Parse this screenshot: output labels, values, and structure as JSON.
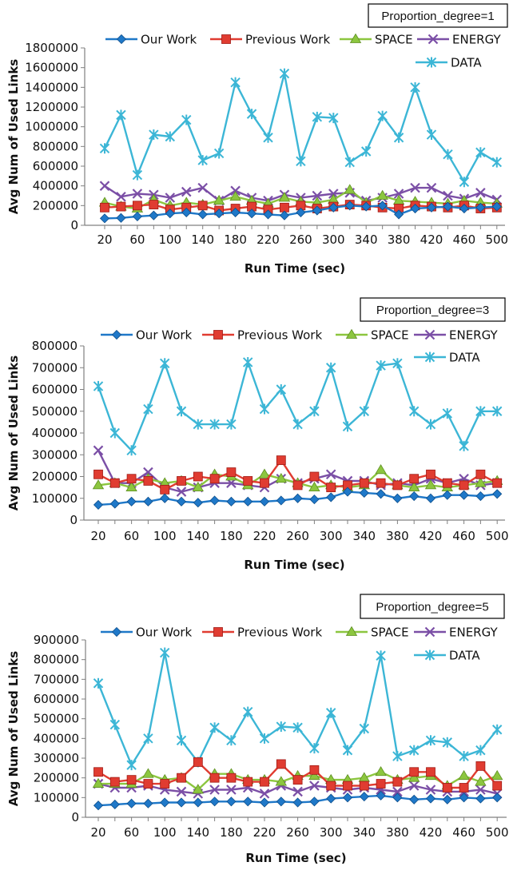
{
  "chart_data": [
    {
      "type": "line",
      "annotation": "Proportion_degree=1",
      "xlabel": "Run Time (sec)",
      "ylabel": "Avg Num of Used Links",
      "ylim": [
        0,
        1800000
      ],
      "yticks": [
        0,
        200000,
        400000,
        600000,
        800000,
        1000000,
        1200000,
        1400000,
        1600000,
        1800000
      ],
      "ytick_labels": [
        "0",
        "200000",
        "400000",
        "600000",
        "800000",
        "1000000",
        "1200000",
        "1400000",
        "1600000",
        "1800000"
      ],
      "xtick_labels": [
        "20",
        "60",
        "100",
        "140",
        "180",
        "220",
        "260",
        "300",
        "340",
        "380",
        "420",
        "460",
        "500"
      ],
      "x": [
        20,
        40,
        60,
        80,
        100,
        120,
        140,
        160,
        180,
        200,
        220,
        240,
        260,
        280,
        300,
        320,
        340,
        360,
        380,
        400,
        420,
        440,
        460,
        480,
        500
      ],
      "legend_position": "top",
      "series": [
        {
          "name": "Our Work",
          "color": "#1f78c8",
          "marker": "diamond",
          "values": [
            70000,
            75000,
            90000,
            100000,
            120000,
            130000,
            110000,
            120000,
            130000,
            120000,
            110000,
            100000,
            130000,
            150000,
            180000,
            200000,
            190000,
            200000,
            110000,
            170000,
            180000,
            190000,
            170000,
            180000,
            190000
          ]
        },
        {
          "name": "Previous Work",
          "color": "#e03c31",
          "marker": "square",
          "values": [
            180000,
            190000,
            200000,
            210000,
            160000,
            180000,
            200000,
            150000,
            170000,
            190000,
            160000,
            180000,
            200000,
            170000,
            190000,
            210000,
            200000,
            180000,
            170000,
            200000,
            190000,
            180000,
            200000,
            170000,
            180000
          ]
        },
        {
          "name": "SPACE",
          "color": "#8cc63f",
          "marker": "triangle",
          "values": [
            230000,
            190000,
            170000,
            260000,
            200000,
            230000,
            210000,
            250000,
            290000,
            250000,
            220000,
            280000,
            240000,
            230000,
            260000,
            360000,
            230000,
            300000,
            250000,
            240000,
            230000,
            220000,
            250000,
            230000,
            220000
          ]
        },
        {
          "name": "ENERGY",
          "color": "#7b4fa6",
          "marker": "x",
          "values": [
            400000,
            290000,
            320000,
            310000,
            280000,
            340000,
            380000,
            250000,
            350000,
            280000,
            250000,
            310000,
            280000,
            300000,
            320000,
            330000,
            250000,
            280000,
            320000,
            380000,
            380000,
            300000,
            270000,
            330000,
            260000
          ]
        },
        {
          "name": "DATA",
          "color": "#3cb6d6",
          "marker": "star",
          "values": [
            780000,
            1120000,
            510000,
            920000,
            900000,
            1070000,
            660000,
            730000,
            1450000,
            1130000,
            890000,
            1540000,
            650000,
            1100000,
            1090000,
            640000,
            750000,
            1110000,
            890000,
            1400000,
            920000,
            720000,
            440000,
            740000,
            640000
          ]
        }
      ]
    },
    {
      "type": "line",
      "annotation": "Proportion_degree=3",
      "xlabel": "Run Time (sec)",
      "ylabel": "Avg Num of Used Links",
      "ylim": [
        0,
        800000
      ],
      "yticks": [
        0,
        100000,
        200000,
        300000,
        400000,
        500000,
        600000,
        700000,
        800000
      ],
      "ytick_labels": [
        "0",
        "100000",
        "200000",
        "300000",
        "400000",
        "500000",
        "600000",
        "700000",
        "800000"
      ],
      "xtick_labels": [
        "20",
        "60",
        "100",
        "140",
        "180",
        "220",
        "260",
        "300",
        "340",
        "380",
        "420",
        "460",
        "500"
      ],
      "x": [
        20,
        40,
        60,
        80,
        100,
        120,
        140,
        160,
        180,
        200,
        220,
        240,
        260,
        280,
        300,
        320,
        340,
        360,
        380,
        400,
        420,
        440,
        460,
        480,
        500
      ],
      "legend_position": "top",
      "series": [
        {
          "name": "Our Work",
          "color": "#1f78c8",
          "marker": "diamond",
          "values": [
            70000,
            75000,
            85000,
            85000,
            100000,
            85000,
            80000,
            90000,
            85000,
            85000,
            85000,
            90000,
            100000,
            95000,
            105000,
            130000,
            125000,
            120000,
            100000,
            110000,
            100000,
            115000,
            115000,
            110000,
            120000
          ]
        },
        {
          "name": "Previous Work",
          "color": "#e03c31",
          "marker": "square",
          "values": [
            210000,
            170000,
            190000,
            180000,
            140000,
            180000,
            200000,
            190000,
            220000,
            180000,
            170000,
            275000,
            160000,
            200000,
            150000,
            160000,
            170000,
            170000,
            160000,
            190000,
            210000,
            170000,
            160000,
            210000,
            170000
          ]
        },
        {
          "name": "SPACE",
          "color": "#8cc63f",
          "marker": "triangle",
          "values": [
            160000,
            170000,
            150000,
            190000,
            170000,
            180000,
            150000,
            210000,
            200000,
            160000,
            210000,
            190000,
            170000,
            150000,
            160000,
            150000,
            160000,
            230000,
            160000,
            150000,
            160000,
            150000,
            160000,
            170000,
            180000
          ]
        },
        {
          "name": "ENERGY",
          "color": "#7b4fa6",
          "marker": "x",
          "values": [
            320000,
            170000,
            170000,
            220000,
            150000,
            130000,
            150000,
            170000,
            170000,
            160000,
            150000,
            190000,
            170000,
            190000,
            210000,
            180000,
            180000,
            160000,
            170000,
            160000,
            190000,
            170000,
            190000,
            160000,
            170000
          ]
        },
        {
          "name": "DATA",
          "color": "#3cb6d6",
          "marker": "star",
          "values": [
            615000,
            400000,
            320000,
            510000,
            720000,
            500000,
            440000,
            440000,
            440000,
            725000,
            510000,
            600000,
            440000,
            500000,
            700000,
            430000,
            500000,
            710000,
            720000,
            500000,
            440000,
            490000,
            340000,
            500000,
            500000
          ]
        }
      ]
    },
    {
      "type": "line",
      "annotation": "Proportion_degree=5",
      "xlabel": "Run Time (sec)",
      "ylabel": "Avg Num of Used Links",
      "ylim": [
        0,
        900000
      ],
      "yticks": [
        0,
        100000,
        200000,
        300000,
        400000,
        500000,
        600000,
        700000,
        800000,
        900000
      ],
      "ytick_labels": [
        "0",
        "100000",
        "200000",
        "300000",
        "400000",
        "500000",
        "600000",
        "700000",
        "800000",
        "900000"
      ],
      "xtick_labels": [
        "20",
        "60",
        "100",
        "140",
        "180",
        "220",
        "260",
        "300",
        "340",
        "380",
        "420",
        "460",
        "500"
      ],
      "x": [
        20,
        40,
        60,
        80,
        100,
        120,
        140,
        160,
        180,
        200,
        220,
        240,
        260,
        280,
        300,
        320,
        340,
        360,
        380,
        400,
        420,
        440,
        460,
        480,
        500
      ],
      "legend_position": "top",
      "series": [
        {
          "name": "Our Work",
          "color": "#1f78c8",
          "marker": "diamond",
          "values": [
            60000,
            65000,
            70000,
            70000,
            75000,
            75000,
            75000,
            80000,
            80000,
            80000,
            75000,
            80000,
            75000,
            80000,
            95000,
            100000,
            105000,
            110000,
            100000,
            90000,
            95000,
            90000,
            100000,
            95000,
            100000
          ]
        },
        {
          "name": "Previous Work",
          "color": "#e03c31",
          "marker": "square",
          "values": [
            230000,
            180000,
            190000,
            170000,
            170000,
            200000,
            280000,
            200000,
            200000,
            180000,
            180000,
            270000,
            190000,
            240000,
            160000,
            160000,
            160000,
            170000,
            180000,
            230000,
            230000,
            150000,
            150000,
            260000,
            160000
          ]
        },
        {
          "name": "SPACE",
          "color": "#8cc63f",
          "marker": "triangle",
          "values": [
            170000,
            170000,
            170000,
            220000,
            190000,
            200000,
            140000,
            220000,
            220000,
            190000,
            190000,
            180000,
            210000,
            210000,
            190000,
            190000,
            200000,
            230000,
            190000,
            200000,
            210000,
            160000,
            210000,
            180000,
            210000
          ]
        },
        {
          "name": "ENERGY",
          "color": "#7b4fa6",
          "marker": "x",
          "values": [
            170000,
            150000,
            150000,
            160000,
            140000,
            130000,
            120000,
            140000,
            140000,
            150000,
            120000,
            160000,
            130000,
            160000,
            150000,
            140000,
            150000,
            140000,
            130000,
            160000,
            140000,
            130000,
            130000,
            140000,
            120000
          ]
        },
        {
          "name": "DATA",
          "color": "#3cb6d6",
          "marker": "star",
          "values": [
            680000,
            470000,
            265000,
            400000,
            835000,
            390000,
            280000,
            455000,
            390000,
            535000,
            400000,
            460000,
            455000,
            350000,
            530000,
            340000,
            450000,
            820000,
            310000,
            340000,
            390000,
            380000,
            310000,
            340000,
            445000
          ]
        }
      ]
    }
  ]
}
